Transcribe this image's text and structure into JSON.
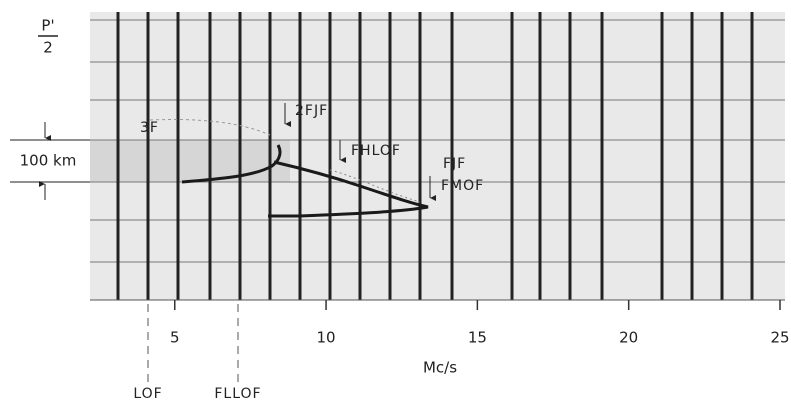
{
  "chart_data": {
    "type": "ionogram",
    "y_label_top": "P'",
    "y_label_bottom": "2",
    "scale_label": "100 km",
    "x_label": "Mc/s",
    "xlim": [
      2.2,
      25
    ],
    "xticks": [
      5,
      10,
      15,
      20,
      25
    ],
    "annotations": [
      "3F",
      "2FJF",
      "FHLOF",
      "FJF",
      "FMOF",
      "LOF",
      "FLLOF"
    ]
  }
}
